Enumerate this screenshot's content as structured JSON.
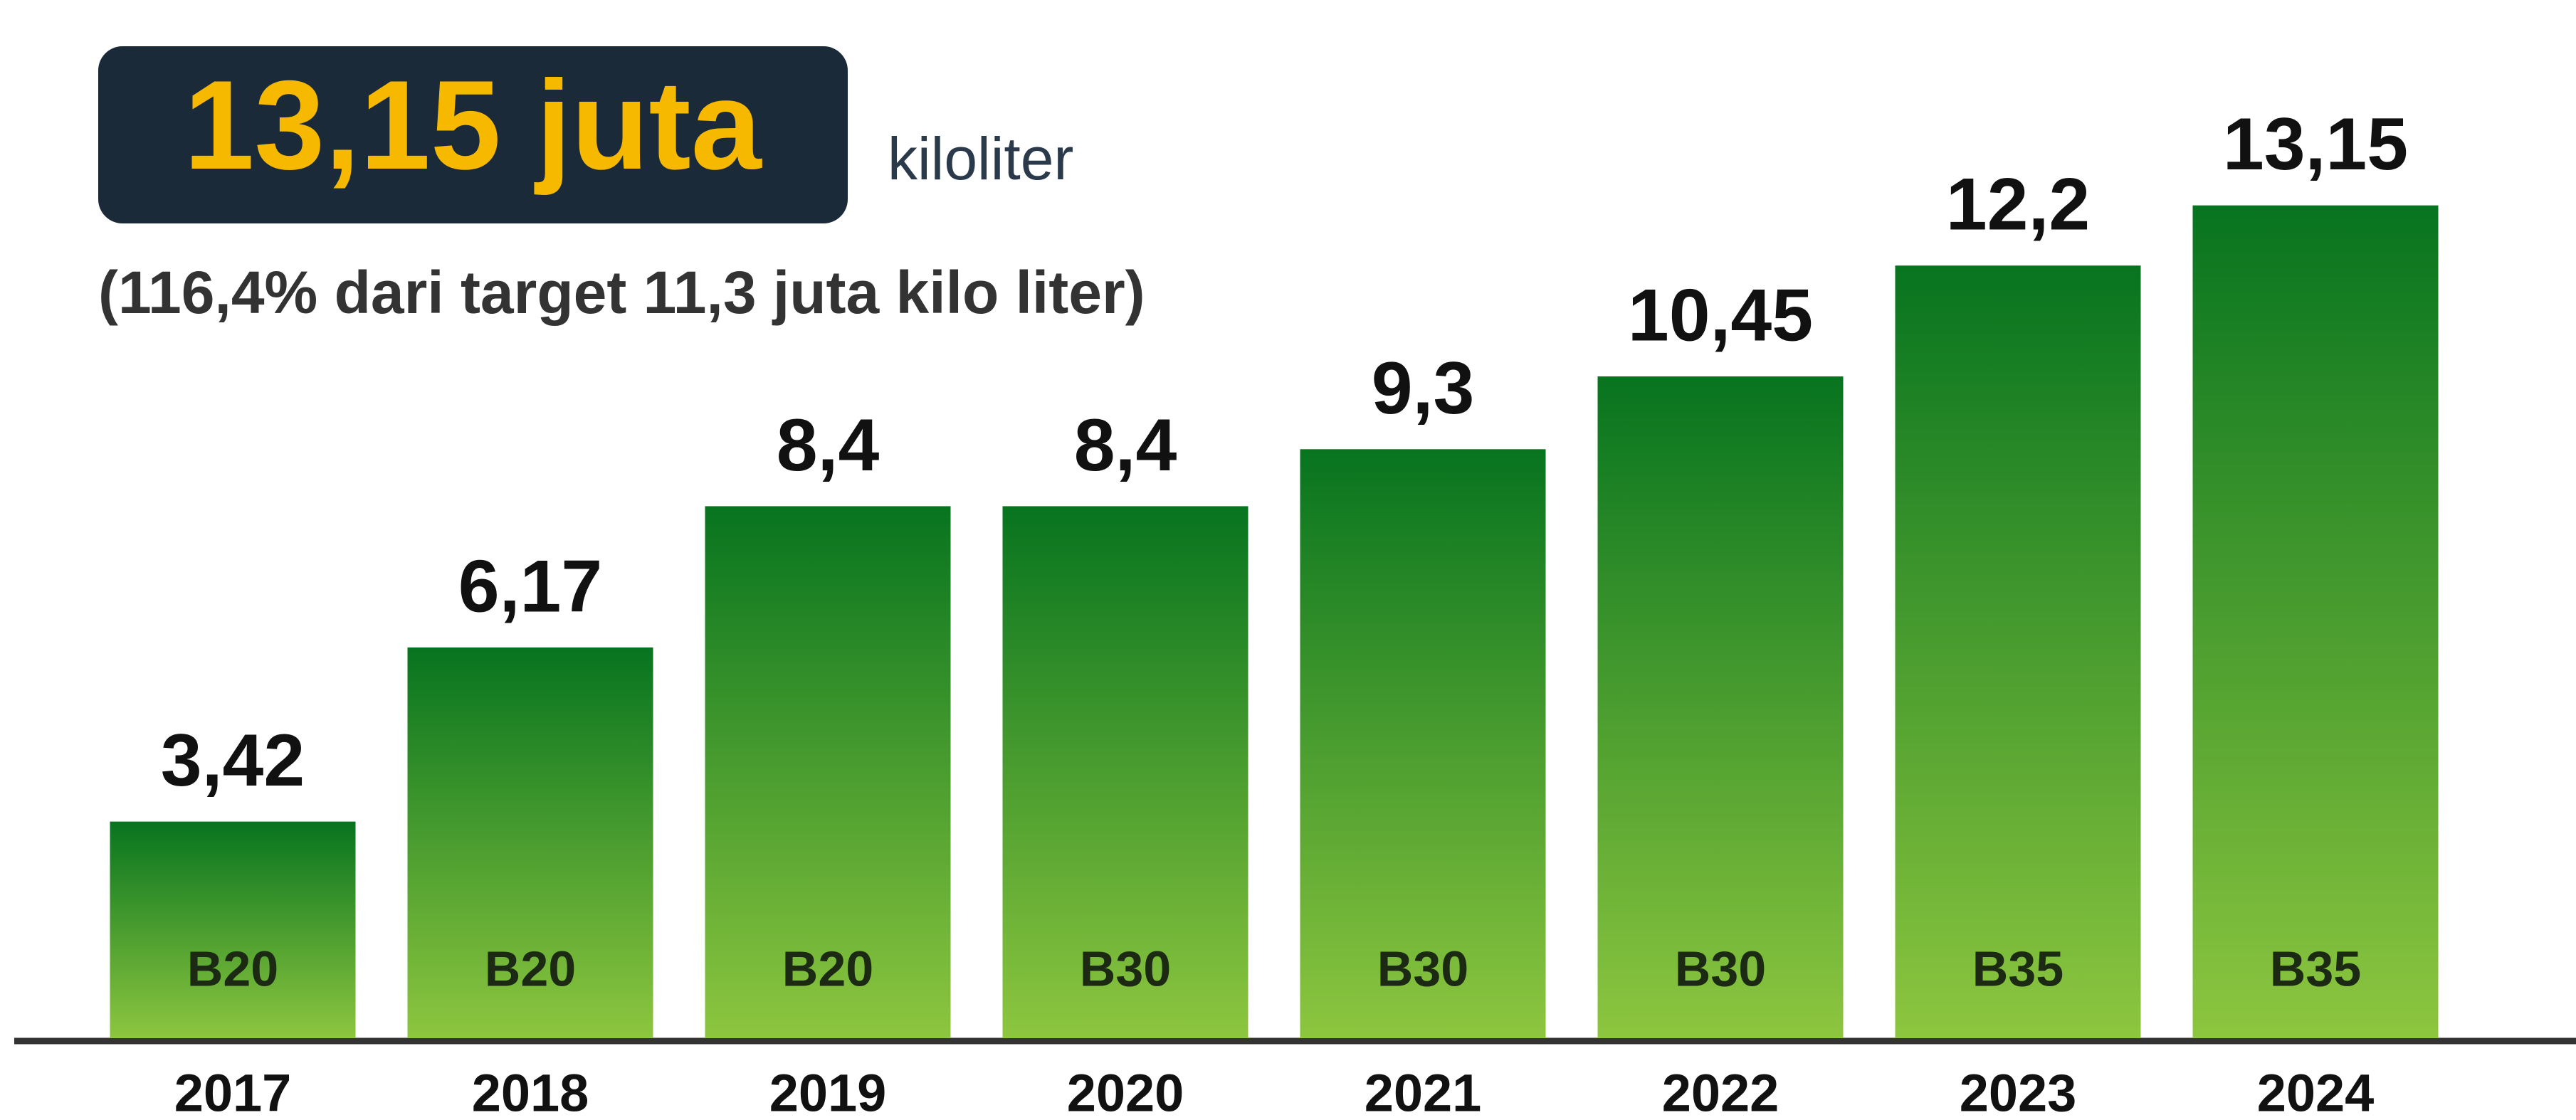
{
  "chart_data": {
    "type": "bar",
    "title": "13,15 juta",
    "unit": "kiloliter",
    "subtitle": "(116,4% dari target 11,3 juta kilo liter)",
    "categories": [
      "2017",
      "2018",
      "2019",
      "2020",
      "2021",
      "2022",
      "2023",
      "2024"
    ],
    "values": [
      3.42,
      6.17,
      8.4,
      8.4,
      9.3,
      10.45,
      12.2,
      13.15
    ],
    "value_labels": [
      "3,42",
      "6,17",
      "8,4",
      "8,4",
      "9,3",
      "10,45",
      "12,2",
      "13,15"
    ],
    "bar_labels": [
      "B20",
      "B20",
      "B20",
      "B30",
      "B30",
      "B30",
      "B35",
      "B35"
    ],
    "colors": [
      "#07741f",
      "#8dc63f"
    ]
  }
}
